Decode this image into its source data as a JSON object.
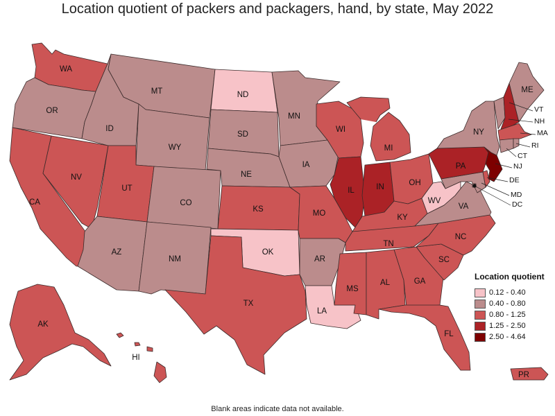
{
  "title": "Location quotient of packers and packagers, hand, by state, May 2022",
  "footnote": "Blank areas indicate data not available.",
  "legend": {
    "title": "Location quotient",
    "classes": [
      {
        "label": "0.12 - 0.40",
        "color": "#f7c3c8"
      },
      {
        "label": "0.40 - 0.80",
        "color": "#bb8c8c"
      },
      {
        "label": "0.80 - 1.25",
        "color": "#cc5555"
      },
      {
        "label": "1.25 - 2.50",
        "color": "#ab2226"
      },
      {
        "label": "2.50 - 4.64",
        "color": "#7d0000"
      }
    ]
  },
  "states": {
    "WA": 2,
    "OR": 1,
    "CA": 2,
    "NV": 2,
    "ID": 1,
    "MT": 1,
    "WY": 1,
    "UT": 2,
    "AZ": 1,
    "CO": 1,
    "NM": 1,
    "ND": 0,
    "SD": 1,
    "NE": 1,
    "KS": 2,
    "OK": 0,
    "TX": 2,
    "MN": 1,
    "IA": 1,
    "MO": 2,
    "AR": 1,
    "LA": 0,
    "WI": 2,
    "IL": 3,
    "MI": 2,
    "IN": 3,
    "OH": 2,
    "KY": 2,
    "TN": 2,
    "MS": 2,
    "AL": 2,
    "GA": 2,
    "FL": 2,
    "SC": 2,
    "NC": 2,
    "VA": 1,
    "WV": 0,
    "PA": 3,
    "NY": 1,
    "VT": 1,
    "NH": 3,
    "ME": 1,
    "MA": 2,
    "RI": 1,
    "CT": 1,
    "NJ": 4,
    "DE": 2,
    "MD": 1,
    "DC": 1,
    "AK": 2,
    "HI": 2,
    "PR": 2
  }
}
